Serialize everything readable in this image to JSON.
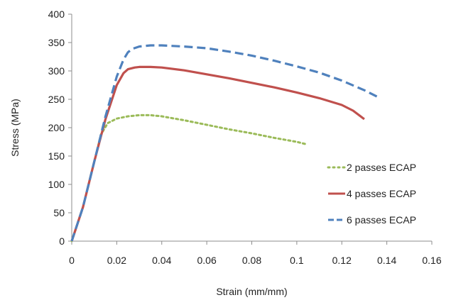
{
  "chart_data": {
    "type": "line",
    "title": "",
    "xlabel": "Strain (mm/mm)",
    "ylabel": "Stress (MPa)",
    "xlim": [
      0,
      0.16
    ],
    "ylim": [
      0,
      400
    ],
    "xticks": [
      0,
      0.02,
      0.04,
      0.06,
      0.08,
      0.1,
      0.12,
      0.14,
      0.16
    ],
    "xtick_labels": [
      "0",
      "0.02",
      "0.04",
      "0.06",
      "0.08",
      "0.1",
      "0.12",
      "0.14",
      "0.16"
    ],
    "yticks": [
      0,
      50,
      100,
      150,
      200,
      250,
      300,
      350,
      400
    ],
    "ytick_labels": [
      "0",
      "50",
      "100",
      "150",
      "200",
      "250",
      "300",
      "350",
      "400"
    ],
    "grid": false,
    "legend_position": "right",
    "series": [
      {
        "name": "2 passes ECAP",
        "color": "#9bbb59",
        "line_style": "dotted",
        "x": [
          0,
          0.005,
          0.01,
          0.013,
          0.016,
          0.02,
          0.025,
          0.03,
          0.035,
          0.04,
          0.05,
          0.06,
          0.07,
          0.08,
          0.09,
          0.1,
          0.104
        ],
        "y": [
          0,
          60,
          140,
          188,
          208,
          216,
          220,
          222,
          222,
          220,
          213,
          205,
          197,
          190,
          182,
          175,
          171
        ]
      },
      {
        "name": "4 passes ECAP",
        "color": "#c0504d",
        "line_style": "solid",
        "x": [
          0,
          0.005,
          0.01,
          0.015,
          0.02,
          0.023,
          0.025,
          0.028,
          0.03,
          0.035,
          0.04,
          0.05,
          0.06,
          0.07,
          0.08,
          0.09,
          0.1,
          0.11,
          0.12,
          0.125,
          0.13
        ],
        "y": [
          0,
          60,
          140,
          215,
          275,
          296,
          303,
          306,
          307,
          307,
          306,
          301,
          294,
          287,
          279,
          271,
          262,
          252,
          240,
          230,
          215
        ]
      },
      {
        "name": "6 passes ECAP",
        "color": "#4f81bd",
        "line_style": "dashed",
        "x": [
          0,
          0.005,
          0.01,
          0.015,
          0.02,
          0.023,
          0.025,
          0.027,
          0.03,
          0.035,
          0.04,
          0.05,
          0.06,
          0.07,
          0.08,
          0.09,
          0.1,
          0.11,
          0.12,
          0.13,
          0.137
        ],
        "y": [
          0,
          60,
          140,
          220,
          290,
          320,
          333,
          339,
          343,
          345,
          345,
          343,
          340,
          334,
          327,
          318,
          308,
          297,
          283,
          266,
          252
        ]
      }
    ]
  }
}
